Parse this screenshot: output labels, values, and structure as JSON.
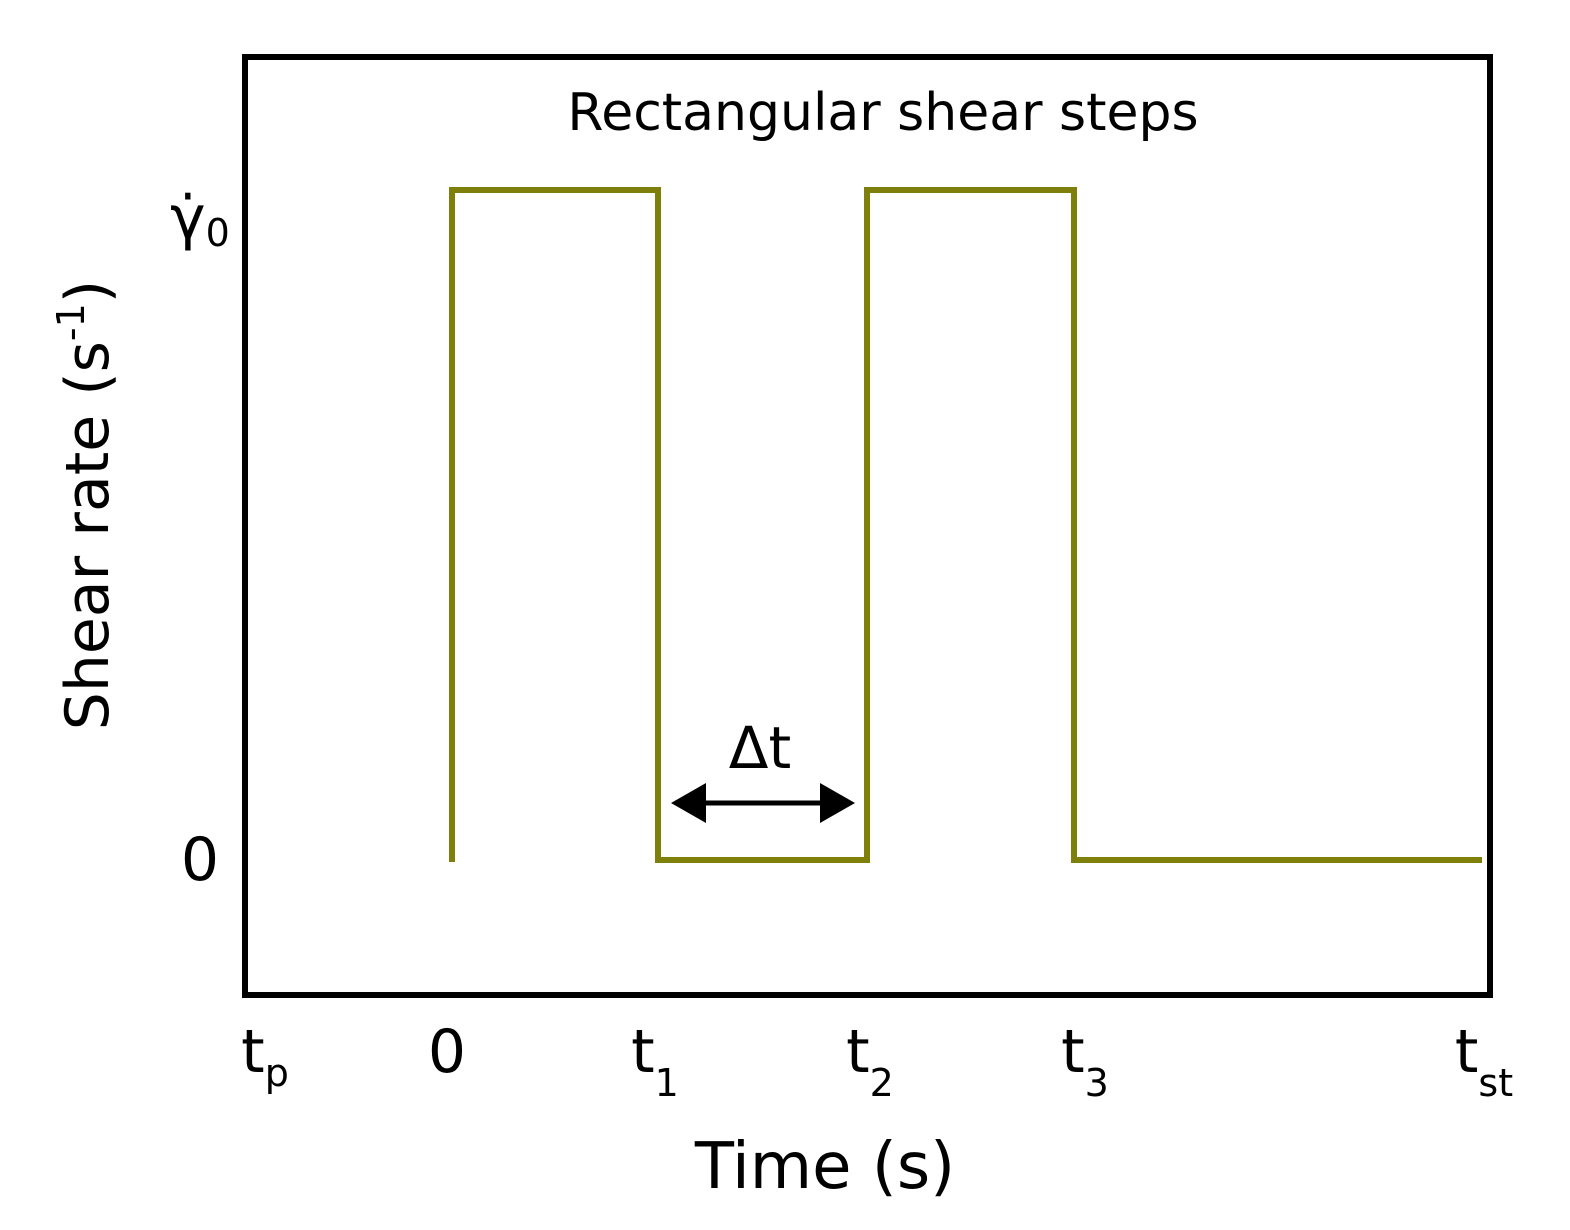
{
  "title": "Rectangular shear steps",
  "y_axis": {
    "label": {
      "text": "Shear rate (s",
      "sup": "-1",
      "close": ")"
    },
    "ticks": [
      {
        "base": "γ̇",
        "sub": "0"
      },
      {
        "base": "0"
      }
    ]
  },
  "x_axis": {
    "label": "Time (s)",
    "ticks": [
      {
        "base": "t",
        "sub": "p"
      },
      {
        "base": "0"
      },
      {
        "base": "t",
        "sub": "1"
      },
      {
        "base": "t",
        "sub": "2"
      },
      {
        "base": "t",
        "sub": "3"
      },
      {
        "base": "t",
        "sub": "st"
      }
    ]
  },
  "annotation": "Δt"
}
